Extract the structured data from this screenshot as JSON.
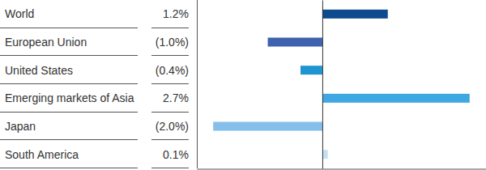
{
  "chart_data": {
    "type": "bar",
    "orientation": "horizontal",
    "categories": [
      "World",
      "European Union",
      "United States",
      "Emerging markets of Asia",
      "Japan",
      "South America"
    ],
    "values": [
      1.2,
      -1.0,
      -0.4,
      2.7,
      -2.0,
      0.1
    ],
    "value_labels": [
      "1.2%",
      "(1.0%)",
      "(0.4%)",
      "2.7%",
      "(2.0%)",
      "0.1%"
    ],
    "data_labels": true,
    "colors": [
      "#0d4a8e",
      "#3e62ad",
      "#1e94d2",
      "#3fa7e1",
      "#84bfe9",
      "#c4e0f5"
    ],
    "xlim": [
      -2.3,
      3.0
    ],
    "xticks": [
      0
    ],
    "tick_labels": false
  }
}
